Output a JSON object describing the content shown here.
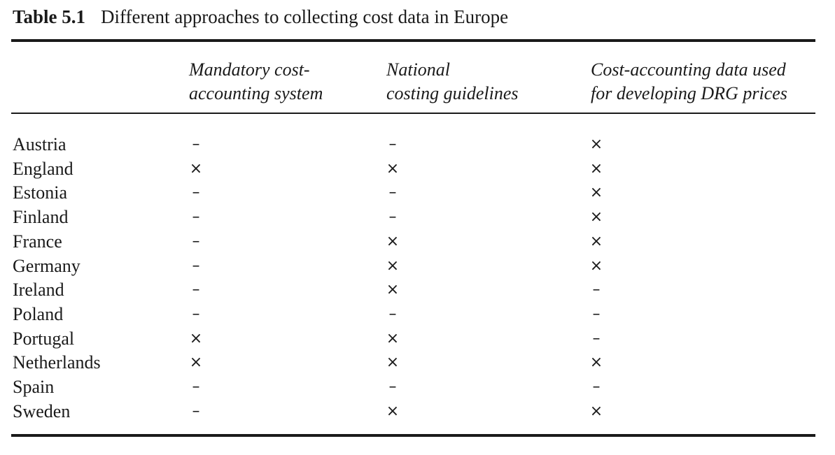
{
  "caption": {
    "number": "Table 5.1",
    "title": "Different approaches to collecting cost data in Europe"
  },
  "columns": [
    {
      "line1": "Mandatory cost-",
      "line2": "accounting system"
    },
    {
      "line1": "National",
      "line2": "costing guidelines"
    },
    {
      "line1": "Cost-accounting data used",
      "line2": "for developing DRG prices"
    }
  ],
  "rows": [
    {
      "country": "Austria",
      "mandatory": "–",
      "guidelines": "–",
      "drg": "×"
    },
    {
      "country": "England",
      "mandatory": "×",
      "guidelines": "×",
      "drg": "×"
    },
    {
      "country": "Estonia",
      "mandatory": "–",
      "guidelines": "–",
      "drg": "×"
    },
    {
      "country": "Finland",
      "mandatory": "–",
      "guidelines": "–",
      "drg": "×"
    },
    {
      "country": "France",
      "mandatory": "–",
      "guidelines": "×",
      "drg": "×"
    },
    {
      "country": "Germany",
      "mandatory": "–",
      "guidelines": "×",
      "drg": "×"
    },
    {
      "country": "Ireland",
      "mandatory": "–",
      "guidelines": "×",
      "drg": "–"
    },
    {
      "country": "Poland",
      "mandatory": "–",
      "guidelines": "–",
      "drg": "–"
    },
    {
      "country": "Portugal",
      "mandatory": "×",
      "guidelines": "×",
      "drg": "–"
    },
    {
      "country": "Netherlands",
      "mandatory": "×",
      "guidelines": "×",
      "drg": "×"
    },
    {
      "country": "Spain",
      "mandatory": "–",
      "guidelines": "–",
      "drg": "–"
    },
    {
      "country": "Sweden",
      "mandatory": "–",
      "guidelines": "×",
      "drg": "×"
    }
  ]
}
